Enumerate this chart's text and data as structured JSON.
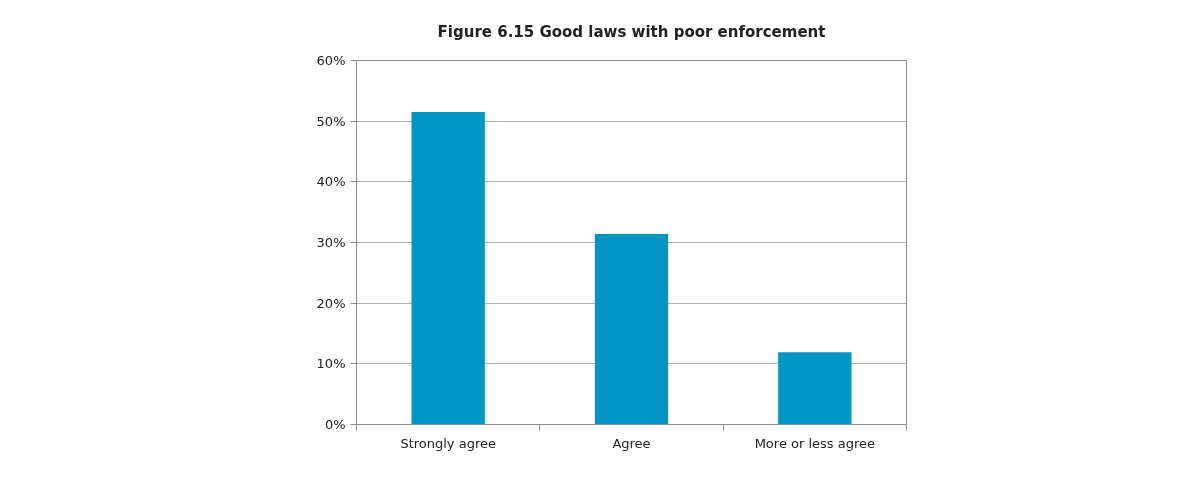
{
  "chart_data": {
    "type": "bar",
    "title": "Figure 6.15 Good laws with poor enforcement",
    "categories": [
      "Strongly agree",
      "Agree",
      "More or less agree"
    ],
    "values": [
      51.5,
      31.4,
      11.9
    ],
    "color": "#0096c4",
    "ylim": [
      0,
      60
    ],
    "yticks": [
      {
        "value": 0,
        "label": "0%"
      },
      {
        "value": 10,
        "label": "10%"
      },
      {
        "value": 20,
        "label": "20%"
      },
      {
        "value": 30,
        "label": "30%"
      },
      {
        "value": 40,
        "label": "40%"
      },
      {
        "value": 50,
        "label": "50%"
      },
      {
        "value": 60,
        "label": "60%"
      }
    ],
    "grid": "y"
  }
}
